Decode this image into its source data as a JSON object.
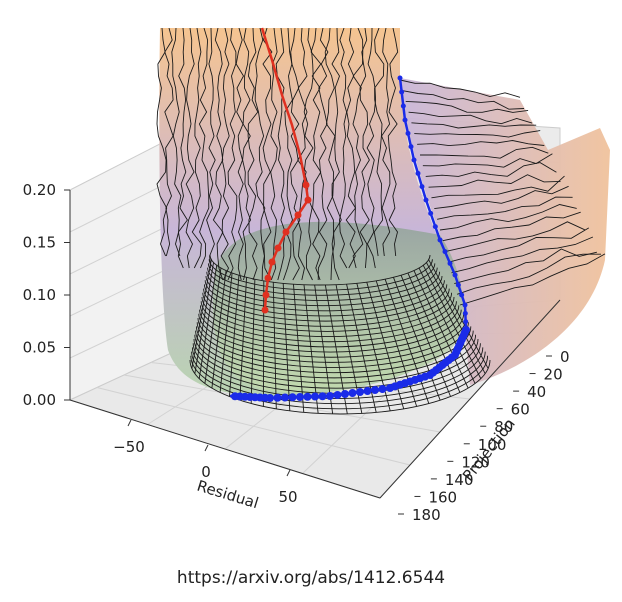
{
  "chart_data": {
    "type": "surface3d",
    "title": "",
    "xlabel": "Residual",
    "ylabel": "Projection",
    "zlabel": "",
    "x_ticks": [
      "−50",
      "0",
      "50"
    ],
    "y_ticks": [
      "0",
      "20",
      "40",
      "60",
      "80",
      "100",
      "120",
      "140",
      "160",
      "180"
    ],
    "z_ticks": [
      "0.00",
      "0.05",
      "0.10",
      "0.15",
      "0.20"
    ],
    "xlim": [
      -80,
      80
    ],
    "ylim": [
      0,
      180
    ],
    "zlim": [
      0,
      0.2
    ],
    "grid": true,
    "series": [
      {
        "color": "#e03020",
        "marker": "circle"
      },
      {
        "color": "#1a2be8",
        "marker": "circle"
      }
    ],
    "surface_colors": [
      "#f5c490",
      "#c8b6d8",
      "#b9d4b0"
    ]
  },
  "caption": "https://arxiv.org/abs/1412.6544"
}
